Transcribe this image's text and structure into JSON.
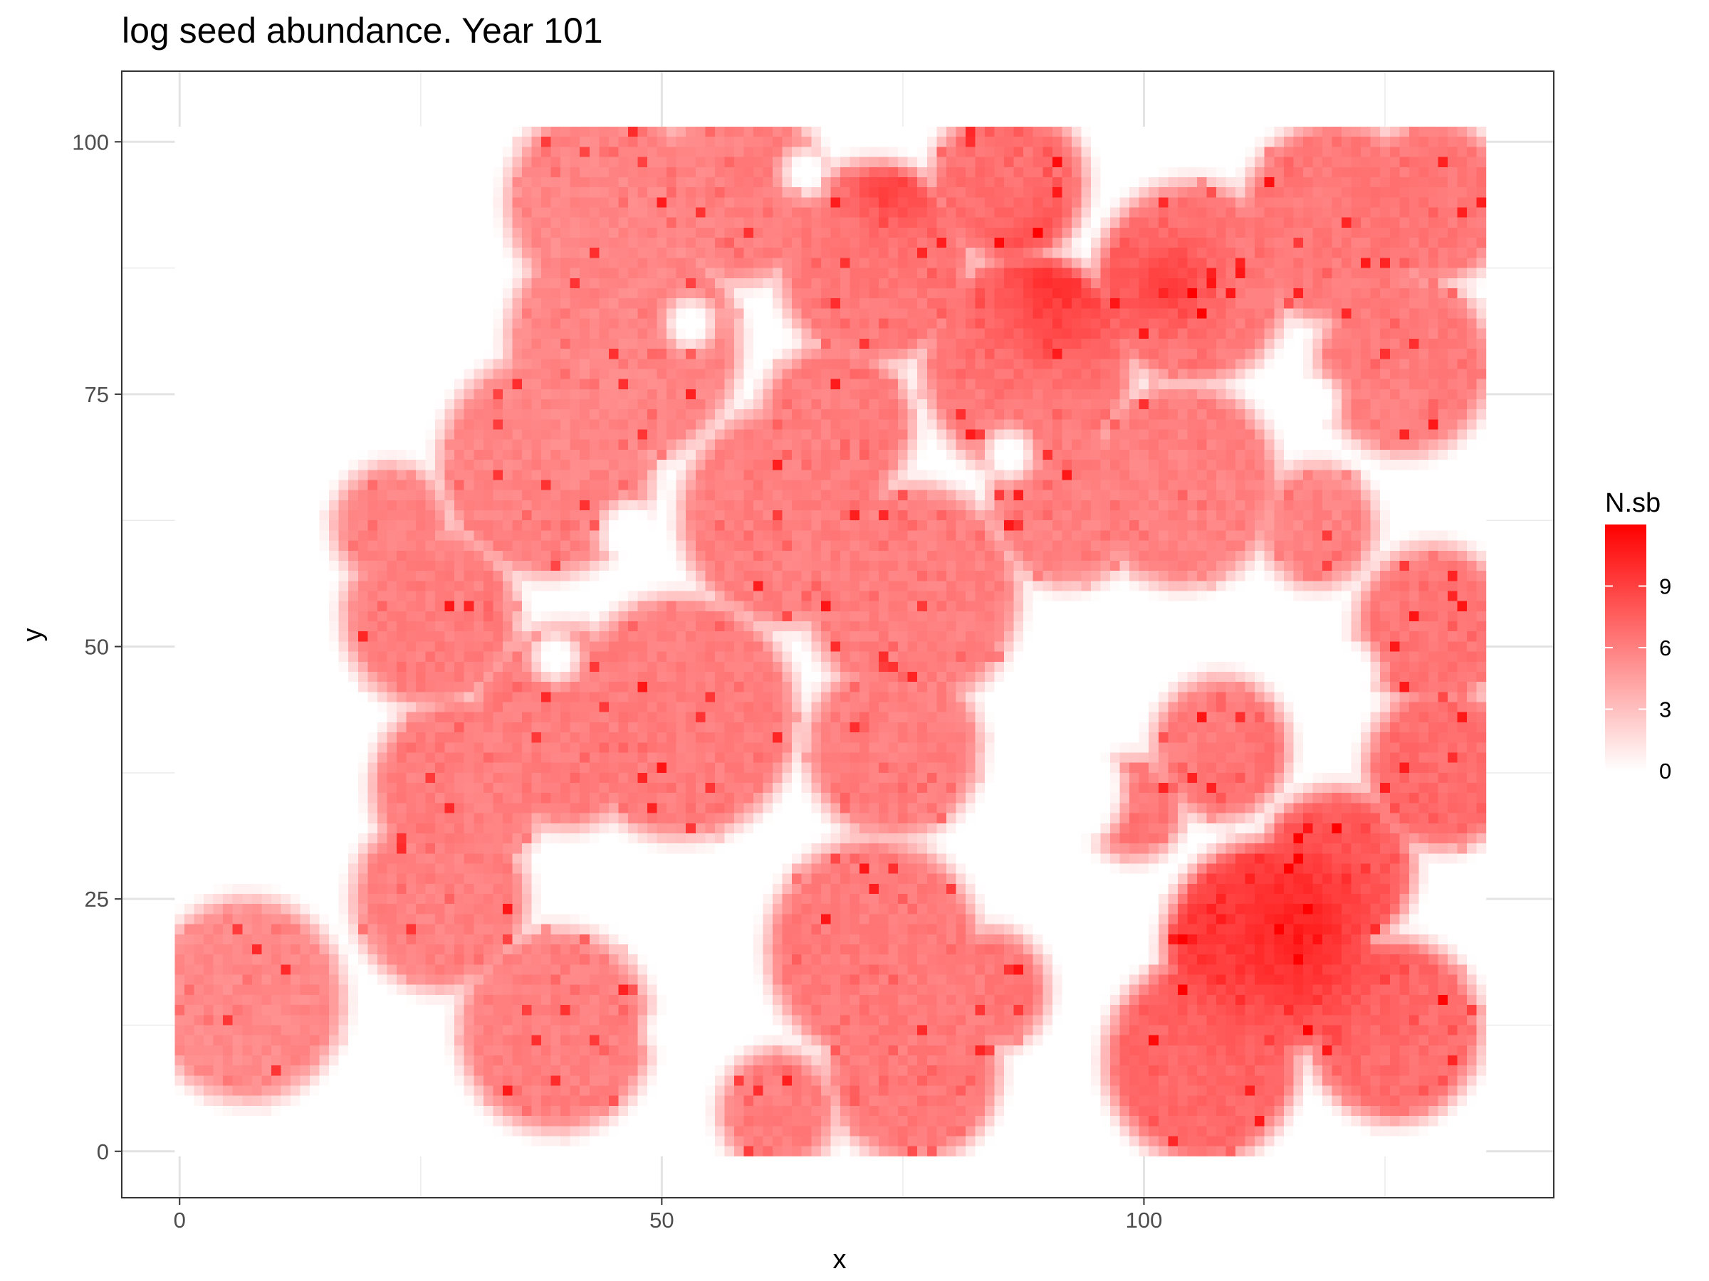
{
  "chart_data": {
    "type": "heatmap",
    "title": "log seed abundance. Year 101",
    "xlabel": "x",
    "ylabel": "y",
    "xlim": [
      -6,
      142.5
    ],
    "ylim": [
      -4.6,
      107
    ],
    "x_ticks": [
      0,
      50,
      100
    ],
    "y_ticks": [
      0,
      25,
      50,
      75,
      100
    ],
    "grid": true,
    "theme": "bw",
    "grid_shape": {
      "cols": 136,
      "rows": 102
    },
    "legend": {
      "title": "N.sb",
      "position": "right",
      "ticks": [
        0,
        3,
        6,
        9
      ],
      "range": [
        0,
        12
      ],
      "low_color": "#ffffff",
      "high_color": "#ff0000"
    },
    "patches": [
      {
        "x": 7,
        "y": 15,
        "radius": 10,
        "level": 5.5
      },
      {
        "x": 27,
        "y": 25,
        "radius": 9,
        "level": 5.8
      },
      {
        "x": 29,
        "y": 36,
        "radius": 9,
        "level": 6.2
      },
      {
        "x": 26,
        "y": 53,
        "radius": 9,
        "level": 6.2
      },
      {
        "x": 22,
        "y": 62,
        "radius": 6,
        "level": 5.8
      },
      {
        "x": 39,
        "y": 12,
        "radius": 10,
        "level": 6.0
      },
      {
        "x": 38,
        "y": 68,
        "radius": 11,
        "level": 5.6
      },
      {
        "x": 46,
        "y": 80,
        "radius": 12,
        "level": 5.6
      },
      {
        "x": 44,
        "y": 94,
        "radius": 10,
        "level": 5.6
      },
      {
        "x": 58,
        "y": 95,
        "radius": 9,
        "level": 6.0
      },
      {
        "x": 52,
        "y": 43,
        "radius": 12,
        "level": 6.2
      },
      {
        "x": 40,
        "y": 42,
        "radius": 10,
        "level": 6.0
      },
      {
        "x": 63,
        "y": 63,
        "radius": 11,
        "level": 6.0
      },
      {
        "x": 76,
        "y": 55,
        "radius": 11,
        "level": 6.0
      },
      {
        "x": 74,
        "y": 40,
        "radius": 9,
        "level": 6.0
      },
      {
        "x": 68,
        "y": 72,
        "radius": 8,
        "level": 6.0
      },
      {
        "x": 72,
        "y": 88,
        "radius": 10,
        "level": 6.6
      },
      {
        "x": 86,
        "y": 96,
        "radius": 8,
        "level": 6.6
      },
      {
        "x": 88,
        "y": 78,
        "radius": 11,
        "level": 6.3
      },
      {
        "x": 105,
        "y": 86,
        "radius": 10,
        "level": 6.4
      },
      {
        "x": 120,
        "y": 92,
        "radius": 10,
        "level": 6.3
      },
      {
        "x": 130,
        "y": 94,
        "radius": 8,
        "level": 6.5
      },
      {
        "x": 127,
        "y": 78,
        "radius": 9,
        "level": 6.0
      },
      {
        "x": 104,
        "y": 66,
        "radius": 10,
        "level": 5.8
      },
      {
        "x": 118,
        "y": 62,
        "radius": 6,
        "level": 5.6
      },
      {
        "x": 92,
        "y": 64,
        "radius": 8,
        "level": 5.8
      },
      {
        "x": 130,
        "y": 52,
        "radius": 8,
        "level": 6.4
      },
      {
        "x": 131,
        "y": 38,
        "radius": 8,
        "level": 6.8
      },
      {
        "x": 72,
        "y": 20,
        "radius": 11,
        "level": 6.2
      },
      {
        "x": 76,
        "y": 8,
        "radius": 9,
        "level": 6.3
      },
      {
        "x": 62,
        "y": 4,
        "radius": 6,
        "level": 6.0
      },
      {
        "x": 84,
        "y": 16,
        "radius": 6,
        "level": 6.2
      },
      {
        "x": 108,
        "y": 40,
        "radius": 7,
        "level": 6.0
      },
      {
        "x": 113,
        "y": 20,
        "radius": 11,
        "level": 7.4
      },
      {
        "x": 106,
        "y": 9,
        "radius": 10,
        "level": 7.0
      },
      {
        "x": 126,
        "y": 12,
        "radius": 9,
        "level": 6.6
      },
      {
        "x": 120,
        "y": 28,
        "radius": 8,
        "level": 7.6
      },
      {
        "x": 99,
        "y": 34,
        "radius": 5,
        "level": 6.0
      }
    ],
    "holes": [
      {
        "x": 47,
        "y": 61,
        "radius": 3.5
      },
      {
        "x": 39,
        "y": 49,
        "radius": 2.5
      },
      {
        "x": 91,
        "y": 36,
        "radius": 7
      },
      {
        "x": 90,
        "y": 46,
        "radius": 5
      },
      {
        "x": 120,
        "y": 47,
        "radius": 4.5
      },
      {
        "x": 117,
        "y": 74,
        "radius": 3.5
      },
      {
        "x": 86,
        "y": 69,
        "radius": 2.5
      },
      {
        "x": 53,
        "y": 82,
        "radius": 2.5
      },
      {
        "x": 65,
        "y": 97,
        "radius": 2.5
      },
      {
        "x": 43,
        "y": 26,
        "radius": 4
      },
      {
        "x": 52,
        "y": 12,
        "radius": 4
      },
      {
        "x": 97,
        "y": 98,
        "radius": 3
      }
    ],
    "hot_spots": [
      {
        "x": 91,
        "y": 86,
        "radius": 5,
        "level": 9.5
      },
      {
        "x": 115,
        "y": 22,
        "radius": 6,
        "level": 10.5
      },
      {
        "x": 107,
        "y": 22,
        "radius": 4,
        "level": 9.5
      },
      {
        "x": 74,
        "y": 96,
        "radius": 3,
        "level": 9.0
      },
      {
        "x": 103,
        "y": 86,
        "radius": 3,
        "level": 9.0
      }
    ]
  }
}
